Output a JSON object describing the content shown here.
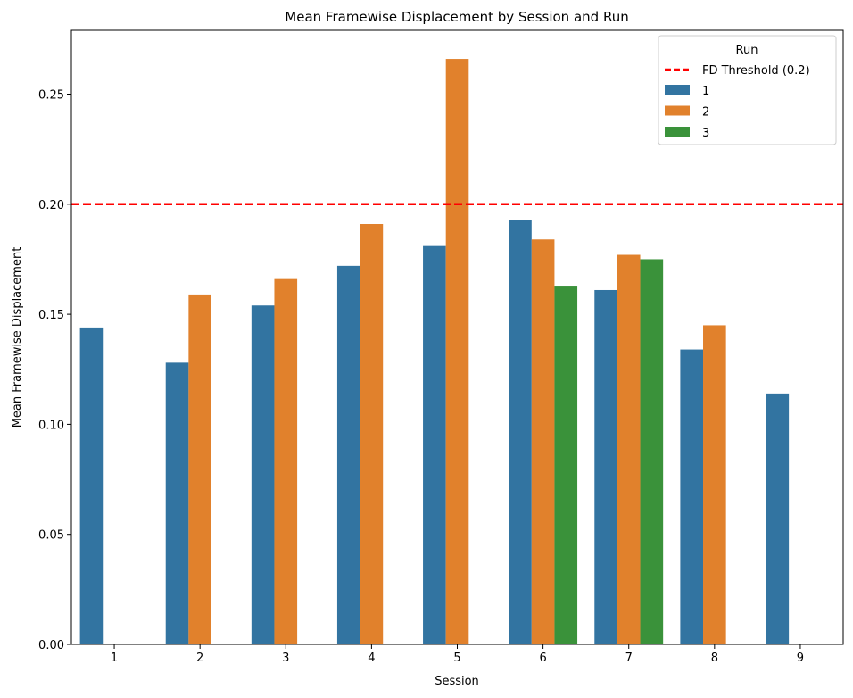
{
  "chart_data": {
    "type": "bar",
    "title": "Mean Framewise Displacement by Session and Run",
    "xlabel": "Session",
    "ylabel": "Mean Framewise Displacement",
    "categories": [
      "1",
      "2",
      "3",
      "4",
      "5",
      "6",
      "7",
      "8",
      "9"
    ],
    "ylim": [
      0,
      0.279
    ],
    "yticks": [
      "0.00",
      "0.05",
      "0.10",
      "0.15",
      "0.20",
      "0.25"
    ],
    "grid": false,
    "legend": {
      "title": "Run",
      "placement": "top-right"
    },
    "threshold": {
      "name": "FD Threshold (0.2)",
      "value": 0.2,
      "color": "#ff0000",
      "style": "dashed"
    },
    "series": [
      {
        "name": "1",
        "color": "#3274a1",
        "values": [
          0.144,
          0.128,
          0.154,
          0.172,
          0.181,
          0.193,
          0.161,
          0.134,
          0.114
        ]
      },
      {
        "name": "2",
        "color": "#e1812c",
        "values": [
          null,
          0.159,
          0.166,
          0.191,
          0.266,
          0.184,
          0.177,
          0.145,
          null
        ]
      },
      {
        "name": "3",
        "color": "#3a923a",
        "values": [
          null,
          null,
          null,
          null,
          null,
          0.163,
          0.175,
          null,
          null
        ]
      }
    ]
  }
}
